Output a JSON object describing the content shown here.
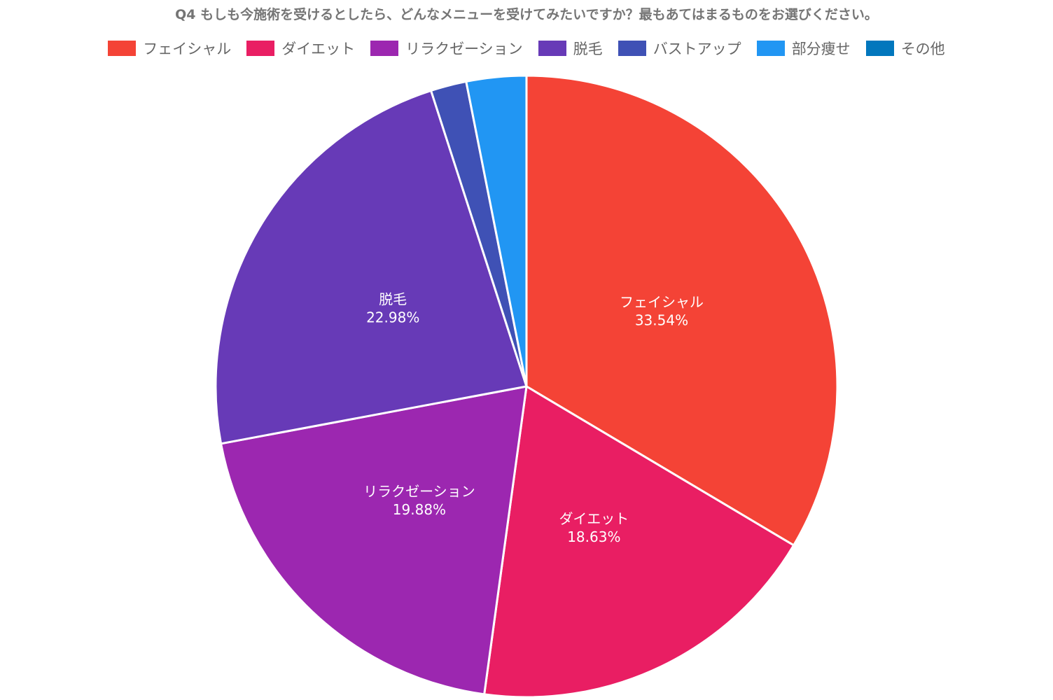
{
  "chart_data": {
    "type": "pie",
    "title": "Q4 もしも今施術を受けるとしたら、どんなメニューを受けてみたいですか？最もあてはまるものをお選びください。",
    "legend_position": "top",
    "slices": [
      {
        "label": "フェイシャル",
        "value": 33.54,
        "display": "33.54%",
        "color": "#f44336",
        "show_label": true
      },
      {
        "label": "ダイエット",
        "value": 18.63,
        "display": "18.63%",
        "color": "#e91e63",
        "show_label": true
      },
      {
        "label": "リラクゼーション",
        "value": 19.88,
        "display": "19.88%",
        "color": "#9c27b0",
        "show_label": true
      },
      {
        "label": "脱毛",
        "value": 22.98,
        "display": "22.98%",
        "color": "#673ab7",
        "show_label": true
      },
      {
        "label": "バストアップ",
        "value": 1.86,
        "display": "",
        "color": "#3f51b5",
        "show_label": false
      },
      {
        "label": "部分痩せ",
        "value": 3.11,
        "display": "",
        "color": "#2196f3",
        "show_label": false
      },
      {
        "label": "その他",
        "value": 0.0,
        "display": "",
        "color": "#0277bd",
        "show_label": false
      }
    ]
  }
}
